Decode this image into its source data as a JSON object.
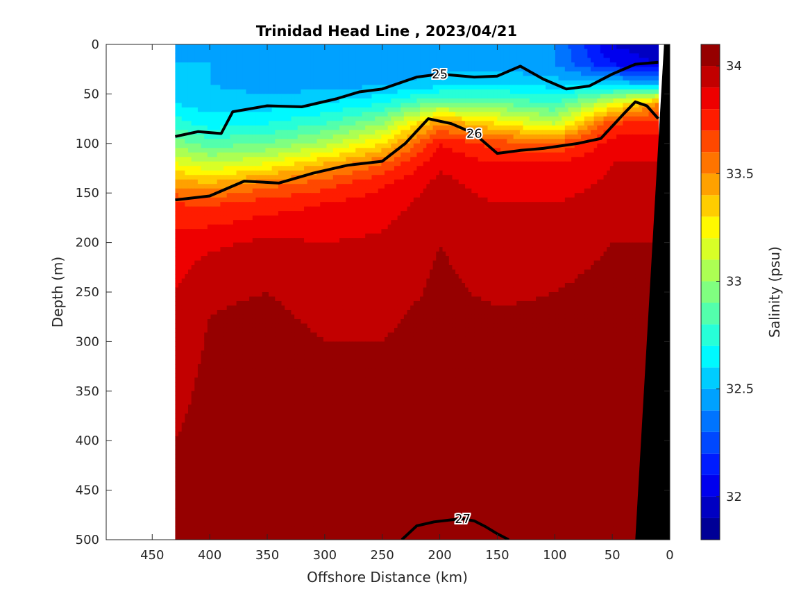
{
  "chart_data": {
    "type": "heatmap",
    "title": "Trinidad Head Line , 2023/04/21",
    "xlabel": "Offshore Distance (km)",
    "ylabel": "Depth (m)",
    "xlim": [
      490,
      0
    ],
    "ylim": [
      0,
      500
    ],
    "x_reversed": true,
    "y_reversed": true,
    "xticks": [
      "450",
      "400",
      "350",
      "300",
      "250",
      "200",
      "150",
      "100",
      "50",
      "0"
    ],
    "yticks": [
      "0",
      "50",
      "100",
      "150",
      "200",
      "250",
      "300",
      "350",
      "400",
      "450",
      "500"
    ],
    "colorbar": {
      "label": "Salinity (psu)",
      "range": [
        31.8,
        34.1
      ],
      "ticks": [
        "32",
        "32.5",
        "33",
        "33.5",
        "34"
      ],
      "colormap": "jet",
      "levels": [
        31.8,
        31.9,
        32.0,
        32.1,
        32.2,
        32.3,
        32.4,
        32.5,
        32.6,
        32.7,
        32.8,
        32.9,
        33.0,
        33.1,
        33.2,
        33.3,
        33.4,
        33.5,
        33.6,
        33.7,
        33.8,
        33.9,
        34.0,
        34.1
      ]
    },
    "data_extent_km": [
      430,
      10
    ],
    "salinity_field": {
      "x_km": [
        430,
        400,
        350,
        300,
        250,
        200,
        150,
        100,
        50,
        10
      ],
      "depth_m": [
        0,
        20,
        40,
        60,
        80,
        100,
        120,
        140,
        160,
        200,
        250,
        300,
        350,
        400,
        450,
        500
      ],
      "values": [
        [
          32.5,
          32.5,
          32.45,
          32.4,
          32.45,
          32.5,
          32.5,
          32.4,
          32.0,
          31.9
        ],
        [
          32.5,
          32.5,
          32.4,
          32.4,
          32.45,
          32.45,
          32.45,
          32.4,
          32.1,
          32.0
        ],
        [
          32.52,
          32.5,
          32.45,
          32.45,
          32.48,
          32.55,
          32.6,
          32.55,
          32.55,
          32.5
        ],
        [
          32.6,
          32.55,
          32.55,
          32.6,
          32.7,
          32.95,
          32.9,
          32.8,
          33.2,
          33.5
        ],
        [
          32.75,
          32.65,
          32.7,
          32.8,
          33.0,
          33.5,
          33.3,
          33.1,
          33.7,
          33.75
        ],
        [
          32.95,
          32.85,
          32.9,
          33.05,
          33.3,
          33.8,
          33.65,
          33.6,
          33.85,
          33.85
        ],
        [
          33.2,
          33.1,
          33.2,
          33.4,
          33.6,
          33.88,
          33.8,
          33.8,
          33.9,
          33.9
        ],
        [
          33.45,
          33.4,
          33.55,
          33.65,
          33.78,
          33.93,
          33.85,
          33.85,
          33.92,
          33.92
        ],
        [
          33.7,
          33.68,
          33.75,
          33.8,
          33.85,
          33.95,
          33.9,
          33.9,
          33.95,
          33.95
        ],
        [
          33.85,
          33.88,
          33.92,
          33.9,
          33.92,
          34.0,
          33.95,
          33.92,
          34.0,
          34.0
        ],
        [
          33.9,
          33.98,
          34.0,
          33.95,
          33.95,
          34.02,
          33.98,
          34.0,
          34.05,
          34.05
        ],
        [
          33.9,
          34.02,
          34.05,
          34.0,
          34.0,
          34.06,
          34.05,
          34.04,
          34.08,
          34.08
        ],
        [
          33.95,
          34.05,
          34.07,
          34.05,
          34.05,
          34.08,
          34.07,
          34.06,
          34.09,
          34.09
        ],
        [
          34.0,
          34.06,
          34.08,
          34.08,
          34.07,
          34.09,
          34.09,
          34.09,
          34.1,
          34.1
        ],
        [
          34.02,
          34.07,
          34.08,
          34.09,
          34.09,
          34.12,
          34.11,
          34.1,
          34.11,
          34.11
        ],
        [
          34.05,
          34.08,
          34.09,
          34.1,
          34.11,
          34.13,
          34.12,
          34.11,
          34.12,
          34.12
        ]
      ]
    },
    "density_contours": [
      {
        "label": "25",
        "x_km": [
          430,
          410,
          390,
          380,
          350,
          320,
          290,
          270,
          250,
          220,
          200,
          170,
          150,
          130,
          110,
          90,
          70,
          50,
          30,
          10
        ],
        "depth_m": [
          93,
          88,
          90,
          68,
          62,
          63,
          55,
          48,
          45,
          33,
          30,
          33,
          32,
          22,
          35,
          45,
          42,
          30,
          20,
          18
        ]
      },
      {
        "label": "26",
        "x_km": [
          430,
          400,
          370,
          340,
          310,
          280,
          250,
          230,
          210,
          190,
          170,
          150,
          130,
          110,
          80,
          60,
          40,
          30,
          20,
          10
        ],
        "depth_m": [
          157,
          153,
          138,
          140,
          130,
          122,
          118,
          100,
          75,
          80,
          90,
          110,
          107,
          105,
          100,
          95,
          70,
          58,
          62,
          75
        ]
      },
      {
        "label": "27",
        "x_km": [
          233,
          220,
          205,
          190,
          180,
          170,
          160,
          150,
          140
        ],
        "depth_m": [
          500,
          486,
          482,
          480,
          479,
          481,
          487,
          494,
          500
        ]
      }
    ],
    "bathymetry_km": {
      "depth_m": [
        0,
        500
      ],
      "x_km": [
        5,
        30
      ]
    }
  }
}
